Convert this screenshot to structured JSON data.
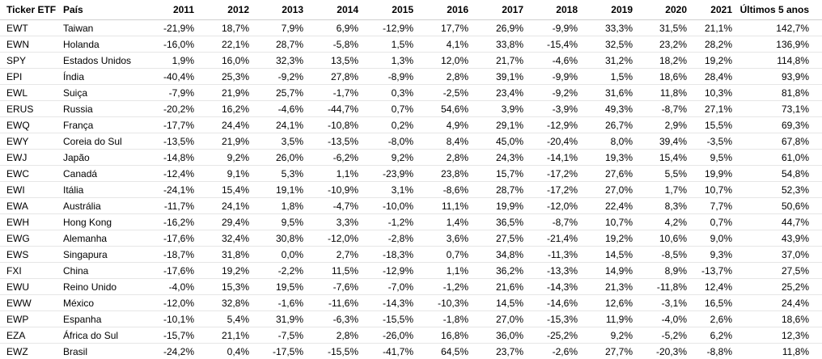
{
  "table": {
    "headers": [
      "Ticker ETF",
      "País",
      "2011",
      "2012",
      "2013",
      "2014",
      "2015",
      "2016",
      "2017",
      "2018",
      "2019",
      "2020",
      "2021",
      "Últimos 5 anos"
    ],
    "rows": [
      [
        "EWT",
        "Taiwan",
        "-21,9%",
        "18,7%",
        "7,9%",
        "6,9%",
        "-12,9%",
        "17,7%",
        "26,9%",
        "-9,9%",
        "33,3%",
        "31,5%",
        "21,1%",
        "142,7%"
      ],
      [
        "EWN",
        "Holanda",
        "-16,0%",
        "22,1%",
        "28,7%",
        "-5,8%",
        "1,5%",
        "4,1%",
        "33,8%",
        "-15,4%",
        "32,5%",
        "23,2%",
        "28,2%",
        "136,9%"
      ],
      [
        "SPY",
        "Estados Unidos",
        "1,9%",
        "16,0%",
        "32,3%",
        "13,5%",
        "1,3%",
        "12,0%",
        "21,7%",
        "-4,6%",
        "31,2%",
        "18,2%",
        "19,2%",
        "114,8%"
      ],
      [
        "EPI",
        "Índia",
        "-40,4%",
        "25,3%",
        "-9,2%",
        "27,8%",
        "-8,9%",
        "2,8%",
        "39,1%",
        "-9,9%",
        "1,5%",
        "18,6%",
        "28,4%",
        "93,9%"
      ],
      [
        "EWL",
        "Suiça",
        "-7,9%",
        "21,9%",
        "25,7%",
        "-1,7%",
        "0,3%",
        "-2,5%",
        "23,4%",
        "-9,2%",
        "31,6%",
        "11,8%",
        "10,3%",
        "81,8%"
      ],
      [
        "ERUS",
        "Russia",
        "-20,2%",
        "16,2%",
        "-4,6%",
        "-44,7%",
        "0,7%",
        "54,6%",
        "3,9%",
        "-3,9%",
        "49,3%",
        "-8,7%",
        "27,1%",
        "73,1%"
      ],
      [
        "EWQ",
        "França",
        "-17,7%",
        "24,4%",
        "24,1%",
        "-10,8%",
        "0,2%",
        "4,9%",
        "29,1%",
        "-12,9%",
        "26,7%",
        "2,9%",
        "15,5%",
        "69,3%"
      ],
      [
        "EWY",
        "Coreia do Sul",
        "-13,5%",
        "21,9%",
        "3,5%",
        "-13,5%",
        "-8,0%",
        "8,4%",
        "45,0%",
        "-20,4%",
        "8,0%",
        "39,4%",
        "-3,5%",
        "67,8%"
      ],
      [
        "EWJ",
        "Japão",
        "-14,8%",
        "9,2%",
        "26,0%",
        "-6,2%",
        "9,2%",
        "2,8%",
        "24,3%",
        "-14,1%",
        "19,3%",
        "15,4%",
        "9,5%",
        "61,0%"
      ],
      [
        "EWC",
        "Canadá",
        "-12,4%",
        "9,1%",
        "5,3%",
        "1,1%",
        "-23,9%",
        "23,8%",
        "15,7%",
        "-17,2%",
        "27,6%",
        "5,5%",
        "19,9%",
        "54,8%"
      ],
      [
        "EWI",
        "Itália",
        "-24,1%",
        "15,4%",
        "19,1%",
        "-10,9%",
        "3,1%",
        "-8,6%",
        "28,7%",
        "-17,2%",
        "27,0%",
        "1,7%",
        "10,7%",
        "52,3%"
      ],
      [
        "EWA",
        "Austrália",
        "-11,7%",
        "24,1%",
        "1,8%",
        "-4,7%",
        "-10,0%",
        "11,1%",
        "19,9%",
        "-12,0%",
        "22,4%",
        "8,3%",
        "7,7%",
        "50,6%"
      ],
      [
        "EWH",
        "Hong Kong",
        "-16,2%",
        "29,4%",
        "9,5%",
        "3,3%",
        "-1,2%",
        "1,4%",
        "36,5%",
        "-8,7%",
        "10,7%",
        "4,2%",
        "0,7%",
        "44,7%"
      ],
      [
        "EWG",
        "Alemanha",
        "-17,6%",
        "32,4%",
        "30,8%",
        "-12,0%",
        "-2,8%",
        "3,6%",
        "27,5%",
        "-21,4%",
        "19,2%",
        "10,6%",
        "9,0%",
        "43,9%"
      ],
      [
        "EWS",
        "Singapura",
        "-18,7%",
        "31,8%",
        "0,0%",
        "2,7%",
        "-18,3%",
        "0,7%",
        "34,8%",
        "-11,3%",
        "14,5%",
        "-8,5%",
        "9,3%",
        "37,0%"
      ],
      [
        "FXI",
        "China",
        "-17,6%",
        "19,2%",
        "-2,2%",
        "11,5%",
        "-12,9%",
        "1,1%",
        "36,2%",
        "-13,3%",
        "14,9%",
        "8,9%",
        "-13,7%",
        "27,5%"
      ],
      [
        "EWU",
        "Reino Unido",
        "-4,0%",
        "15,3%",
        "19,5%",
        "-7,6%",
        "-7,0%",
        "-1,2%",
        "21,6%",
        "-14,3%",
        "21,3%",
        "-11,8%",
        "12,4%",
        "25,2%"
      ],
      [
        "EWW",
        "México",
        "-12,0%",
        "32,8%",
        "-1,6%",
        "-11,6%",
        "-14,3%",
        "-10,3%",
        "14,5%",
        "-14,6%",
        "12,6%",
        "-3,1%",
        "16,5%",
        "24,4%"
      ],
      [
        "EWP",
        "Espanha",
        "-10,1%",
        "5,4%",
        "31,9%",
        "-6,3%",
        "-15,5%",
        "-1,8%",
        "27,0%",
        "-15,3%",
        "11,9%",
        "-4,0%",
        "2,6%",
        "18,6%"
      ],
      [
        "EZA",
        "África do Sul",
        "-15,7%",
        "21,1%",
        "-7,5%",
        "2,8%",
        "-26,0%",
        "16,8%",
        "36,0%",
        "-25,2%",
        "9,2%",
        "-5,2%",
        "6,2%",
        "12,3%"
      ],
      [
        "EWZ",
        "Brasil",
        "-24,2%",
        "0,4%",
        "-17,5%",
        "-15,5%",
        "-41,7%",
        "64,5%",
        "23,7%",
        "-2,6%",
        "27,7%",
        "-20,3%",
        "-8,8%",
        "11,8%"
      ]
    ]
  }
}
